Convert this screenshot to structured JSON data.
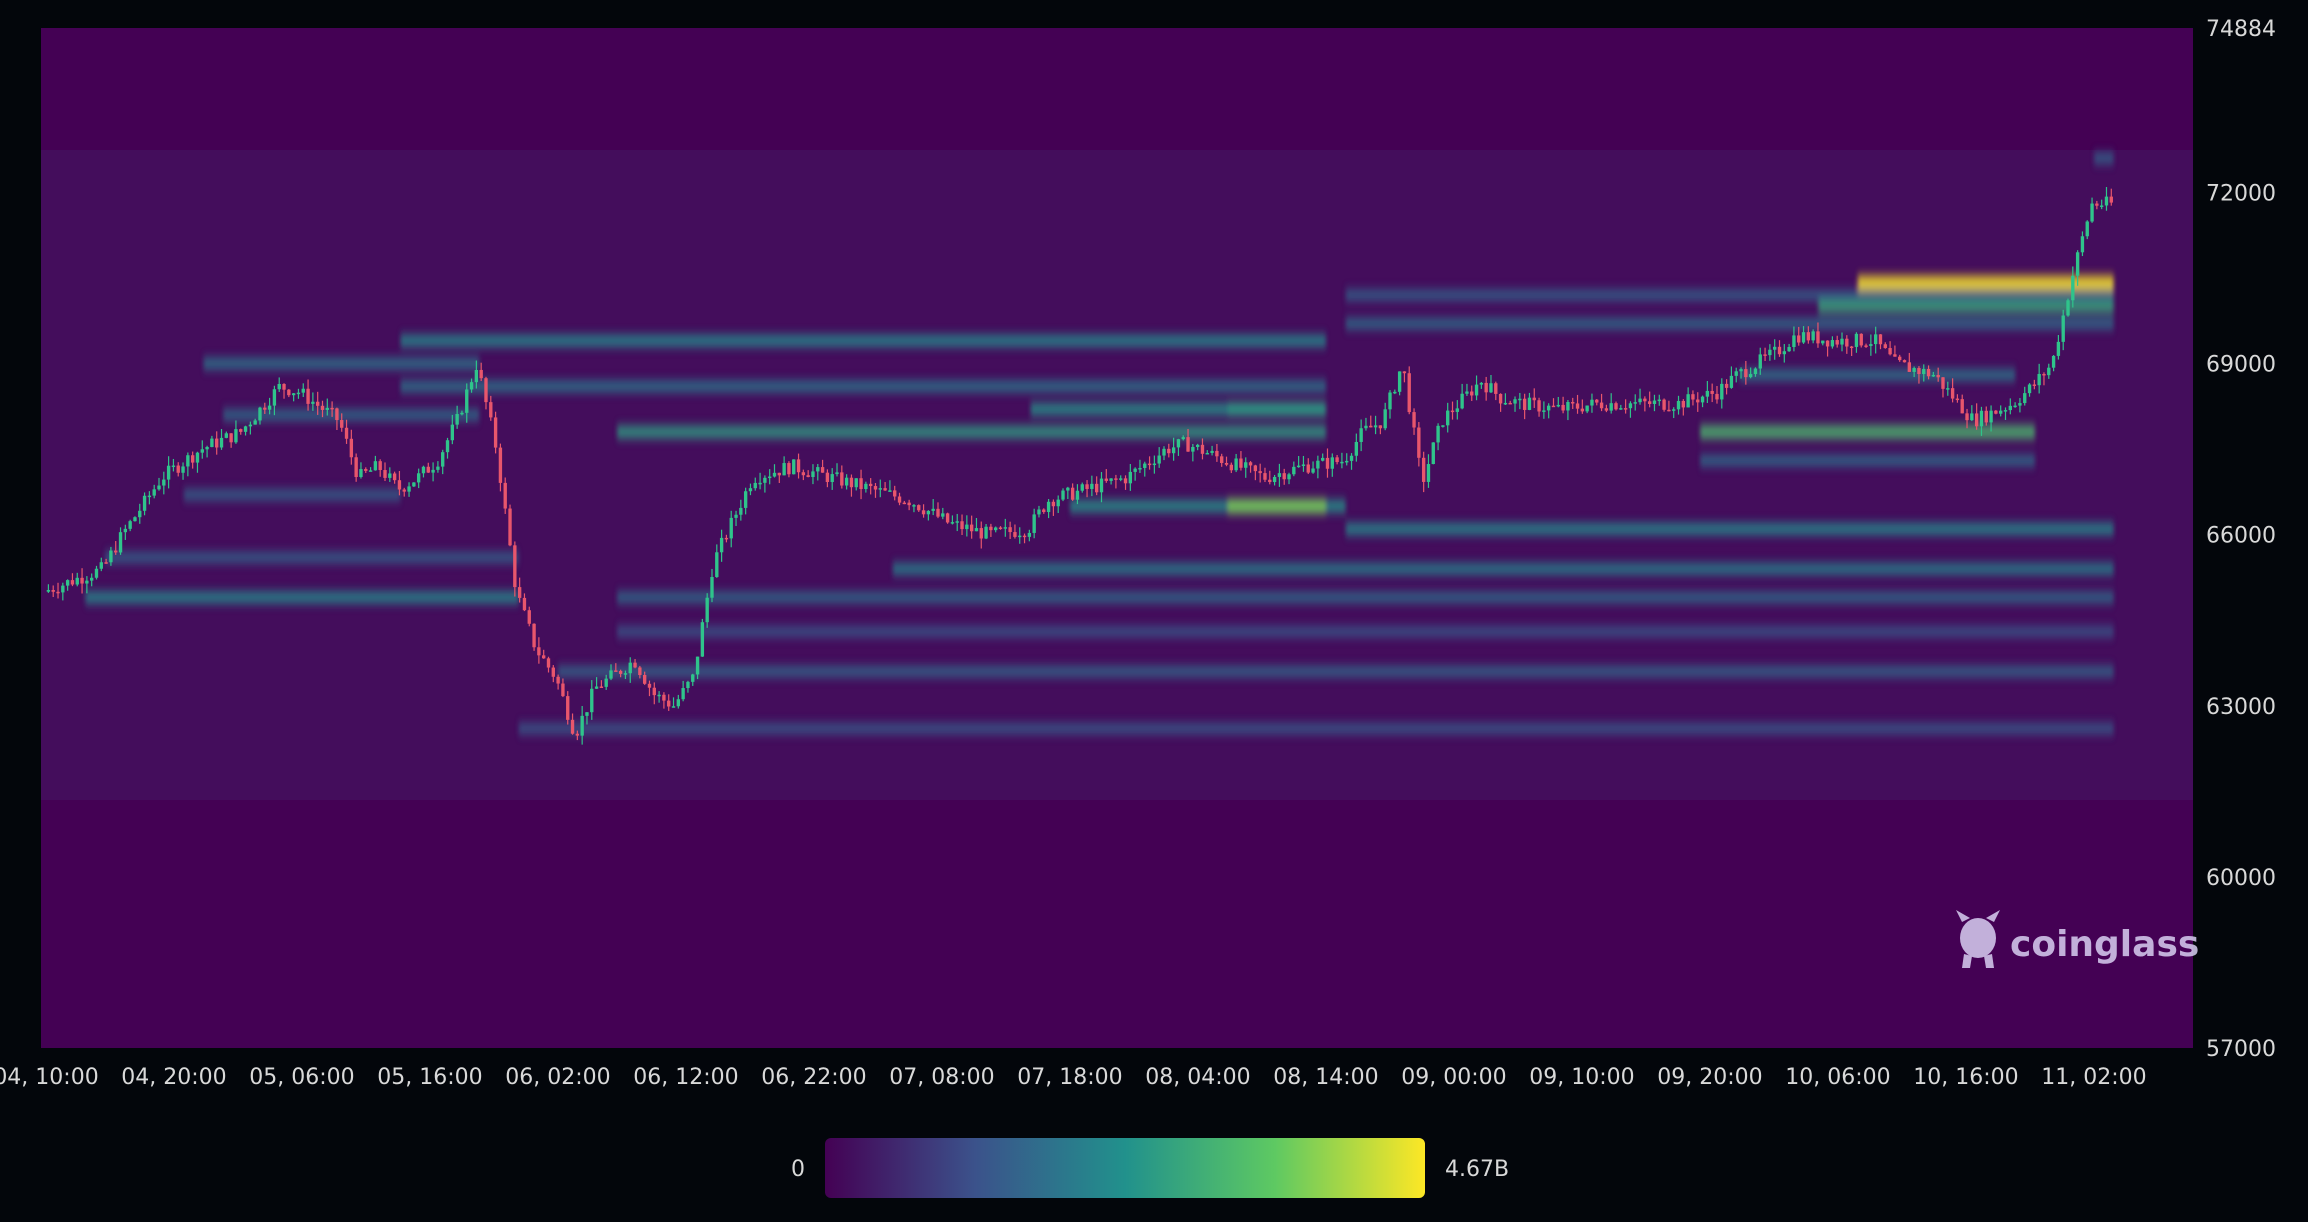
{
  "chart_data": {
    "type": "heatmap",
    "title": "",
    "xlabel": "",
    "ylabel": "",
    "ylim": [
      57000,
      74884
    ],
    "y_ticks": [
      "74884",
      "72000",
      "69000",
      "66000",
      "63000",
      "60000",
      "57000"
    ],
    "y_tick_values": [
      74884,
      72000,
      69000,
      66000,
      63000,
      60000,
      57000
    ],
    "x_ticks": [
      "04, 10:00",
      "04, 20:00",
      "05, 06:00",
      "05, 16:00",
      "06, 02:00",
      "06, 12:00",
      "06, 22:00",
      "07, 08:00",
      "07, 18:00",
      "08, 04:00",
      "08, 14:00",
      "09, 00:00",
      "09, 10:00",
      "09, 20:00",
      "10, 06:00",
      "10, 16:00",
      "11, 02:00"
    ],
    "colorbar": {
      "min_label": "0",
      "max_label": "4.67B",
      "colors": [
        "#440154",
        "#3b528b",
        "#21918c",
        "#5ec962",
        "#fde725"
      ]
    },
    "colors": {
      "background": "#440154",
      "up_candle": "#2fc48b",
      "down_candle": "#e8566c",
      "page": "#03060b"
    },
    "watermark": "coinglass",
    "price_path": [
      [
        0,
        65000
      ],
      [
        3,
        65400
      ],
      [
        4,
        66000
      ],
      [
        6,
        67000
      ],
      [
        8,
        67500
      ],
      [
        10,
        67800
      ],
      [
        12,
        68600
      ],
      [
        13,
        68500
      ],
      [
        15,
        68000
      ],
      [
        16,
        67000
      ],
      [
        17,
        67200
      ],
      [
        18,
        66800
      ],
      [
        19,
        67000
      ],
      [
        20,
        67300
      ],
      [
        21,
        68000
      ],
      [
        22,
        69000
      ],
      [
        23,
        67500
      ],
      [
        24,
        65000
      ],
      [
        25,
        64000
      ],
      [
        26,
        63500
      ],
      [
        27,
        62500
      ],
      [
        28,
        63300
      ],
      [
        30,
        63800
      ],
      [
        31,
        63200
      ],
      [
        32,
        63000
      ],
      [
        33,
        63500
      ],
      [
        34,
        65500
      ],
      [
        36,
        67000
      ],
      [
        38,
        67200
      ],
      [
        40,
        67000
      ],
      [
        42,
        66800
      ],
      [
        44,
        66600
      ],
      [
        46,
        66200
      ],
      [
        48,
        66000
      ],
      [
        50,
        66100
      ],
      [
        51,
        66600
      ],
      [
        53,
        66800
      ],
      [
        55,
        67000
      ],
      [
        57,
        67500
      ],
      [
        58,
        67600
      ],
      [
        60,
        67300
      ],
      [
        62,
        67000
      ],
      [
        64,
        67200
      ],
      [
        66,
        67300
      ],
      [
        67,
        67800
      ],
      [
        68,
        68000
      ],
      [
        69,
        69000
      ],
      [
        70,
        66900
      ],
      [
        71,
        68000
      ],
      [
        73,
        68700
      ],
      [
        74,
        68400
      ],
      [
        75,
        68300
      ],
      [
        77,
        68200
      ],
      [
        79,
        68300
      ],
      [
        81,
        68300
      ],
      [
        83,
        68300
      ],
      [
        85,
        68500
      ],
      [
        86,
        68800
      ],
      [
        88,
        69200
      ],
      [
        89,
        69500
      ],
      [
        91,
        69400
      ],
      [
        93,
        69400
      ],
      [
        94,
        69000
      ],
      [
        96,
        68800
      ],
      [
        97,
        68400
      ],
      [
        98,
        68000
      ],
      [
        100,
        68300
      ],
      [
        101,
        68600
      ],
      [
        102,
        69000
      ],
      [
        103,
        70500
      ],
      [
        104,
        71800
      ],
      [
        105,
        71800
      ]
    ],
    "liquidity_bands": [
      {
        "x_from": 2,
        "x_to": 24,
        "price": 64900,
        "intensity": 0.35
      },
      {
        "x_from": 3,
        "x_to": 24,
        "price": 65600,
        "intensity": 0.15
      },
      {
        "x_from": 8,
        "x_to": 22,
        "price": 69000,
        "intensity": 0.25
      },
      {
        "x_from": 9,
        "x_to": 22,
        "price": 68100,
        "intensity": 0.2
      },
      {
        "x_from": 7,
        "x_to": 18,
        "price": 66700,
        "intensity": 0.15
      },
      {
        "x_from": 18,
        "x_to": 65,
        "price": 69400,
        "intensity": 0.35
      },
      {
        "x_from": 18,
        "x_to": 65,
        "price": 68600,
        "intensity": 0.25
      },
      {
        "x_from": 29,
        "x_to": 65,
        "price": 67800,
        "intensity": 0.45
      },
      {
        "x_from": 60,
        "x_to": 65,
        "price": 68200,
        "intensity": 0.6
      },
      {
        "x_from": 50,
        "x_to": 65,
        "price": 68200,
        "intensity": 0.4
      },
      {
        "x_from": 52,
        "x_to": 66,
        "price": 66500,
        "intensity": 0.4
      },
      {
        "x_from": 60,
        "x_to": 65,
        "price": 66500,
        "intensity": 0.75
      },
      {
        "x_from": 43,
        "x_to": 105,
        "price": 65400,
        "intensity": 0.3
      },
      {
        "x_from": 29,
        "x_to": 105,
        "price": 64900,
        "intensity": 0.2
      },
      {
        "x_from": 66,
        "x_to": 105,
        "price": 66100,
        "intensity": 0.35
      },
      {
        "x_from": 26,
        "x_to": 105,
        "price": 63600,
        "intensity": 0.18
      },
      {
        "x_from": 24,
        "x_to": 105,
        "price": 62600,
        "intensity": 0.12
      },
      {
        "x_from": 29,
        "x_to": 105,
        "price": 64300,
        "intensity": 0.1
      },
      {
        "x_from": 84,
        "x_to": 101,
        "price": 67800,
        "intensity": 0.6
      },
      {
        "x_from": 84,
        "x_to": 101,
        "price": 67300,
        "intensity": 0.2
      },
      {
        "x_from": 86,
        "x_to": 100,
        "price": 68800,
        "intensity": 0.25
      },
      {
        "x_from": 92,
        "x_to": 105,
        "price": 70400,
        "intensity": 1.0
      },
      {
        "x_from": 90,
        "x_to": 105,
        "price": 70000,
        "intensity": 0.5
      },
      {
        "x_from": 66,
        "x_to": 105,
        "price": 69700,
        "intensity": 0.2
      },
      {
        "x_from": 66,
        "x_to": 105,
        "price": 70200,
        "intensity": 0.15
      },
      {
        "x_from": 104,
        "x_to": 105,
        "price": 72600,
        "intensity": 0.15
      }
    ]
  }
}
